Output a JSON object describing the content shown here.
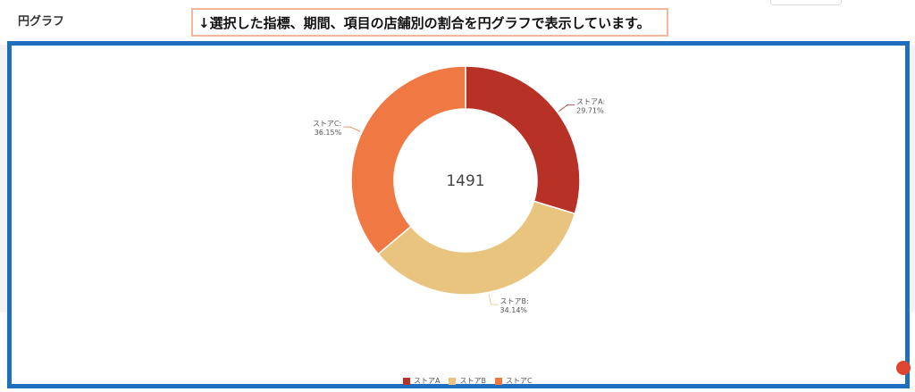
{
  "header": {
    "title": "円グラフ"
  },
  "annotation": {
    "text": "↓選択した指標、期間、項目の店舗別の割合を円グラフで表示しています。"
  },
  "chart": {
    "total": "1491"
  },
  "colors": {
    "frame": "#1f6fc0",
    "annotation_border": "#f0b79a"
  },
  "chart_data": {
    "type": "pie",
    "donut": true,
    "center_label": "1491",
    "slices": [
      {
        "name": "ストアA",
        "label": "ストアA:",
        "percent_text": "29.71%",
        "percent": 29.71,
        "color": "#b83126"
      },
      {
        "name": "ストアB",
        "label": "ストアB:",
        "percent_text": "34.14%",
        "percent": 34.14,
        "color": "#e8c47f"
      },
      {
        "name": "ストアC",
        "label": "ストアC:",
        "percent_text": "36.15%",
        "percent": 36.15,
        "color": "#f07943"
      }
    ],
    "legend": [
      "ストアA",
      "ストアB",
      "ストアC"
    ],
    "legend_position": "bottom"
  }
}
